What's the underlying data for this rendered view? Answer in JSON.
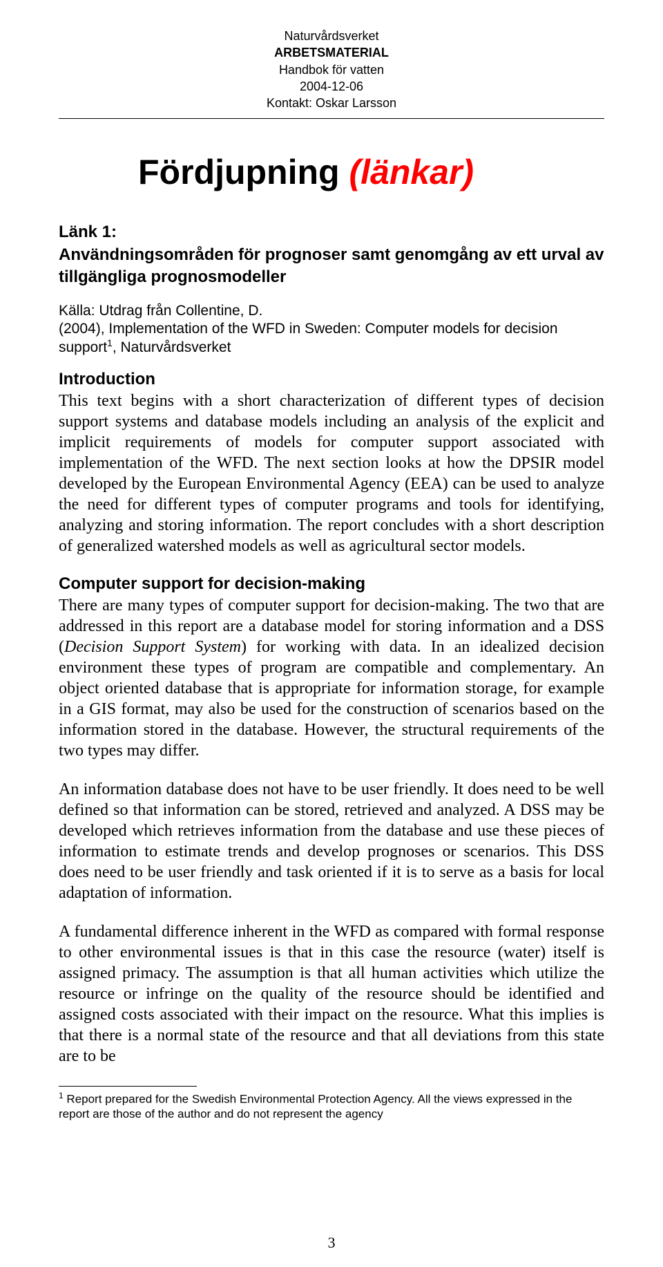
{
  "header": {
    "line1": "Naturvårdsverket",
    "line2": "ARBETSMATERIAL",
    "line3": "Handbok för vatten",
    "line4": "2004-12-06",
    "line5": "Kontakt: Oskar Larsson"
  },
  "title": {
    "main": "Fördjupning ",
    "italic": "(länkar)"
  },
  "link_heading": {
    "line1": "Länk 1:",
    "line2": "Användningsområden för prognoser samt genomgång av ett urval av tillgängliga prognosmodeller"
  },
  "source": {
    "prefix": "Källa: Utdrag från Collentine, D. ",
    "detail_a": "(2004), Implementation of the WFD in Sweden: Computer models for decision support",
    "sup": "1",
    "detail_b": ", Naturvårdsverket"
  },
  "intro_heading": "Introduction",
  "intro_body": "This text begins with a short characterization of different types of decision support systems and database models including an analysis of the explicit and implicit requirements of models for computer support associated with implementation of the WFD. The next section looks at how the DPSIR model developed by the European Environmental Agency (EEA) can be used to analyze the need for different types of computer programs and tools for identifying, analyzing and storing information. The report concludes with a short description of generalized watershed models as well as agricultural sector models.",
  "section2_heading": "Computer support for decision-making",
  "section2_p1_a": "There are many types of computer support for decision-making. The two that are addressed in this report are a database model for storing information and a DSS (",
  "section2_p1_italic": "Decision Support System",
  "section2_p1_b": ") for working with data. In an idealized decision environment these types of program are compatible and complementary. An object oriented database that is appropriate for information storage, for example in a GIS format, may also be used for the construction of scenarios based on the information stored in the database. However, the structural requirements of the two types may differ.",
  "section2_p2": "An information database does not have to be user friendly. It does need to be well defined so that information can be stored, retrieved and analyzed. A DSS may be developed which retrieves information from the database and use these pieces of information to estimate trends and develop prognoses or scenarios. This DSS does need to be user friendly and task oriented if it is to serve as a basis for local adaptation of information.",
  "section2_p3": "A fundamental difference inherent in the WFD as compared with formal response to other environmental issues is that in this case the resource (water) itself is assigned primacy. The assumption is that all human activities which utilize the resource or infringe on the quality of the resource should be identified and assigned costs associated with their impact on the resource. What this implies is that there is a normal state of the resource and that all deviations from this state are to be",
  "footnote": {
    "sup": "1",
    "text": " Report prepared for the Swedish Environmental Protection Agency. All the views expressed in the report are those of the author and do not represent the agency"
  },
  "page_number": "3",
  "colors": {
    "text": "#000000",
    "accent_red": "#ff0000",
    "background": "#ffffff"
  },
  "typography": {
    "body_family": "Times New Roman",
    "heading_family": "Arial",
    "body_size_pt": 18,
    "title_size_pt": 37
  }
}
